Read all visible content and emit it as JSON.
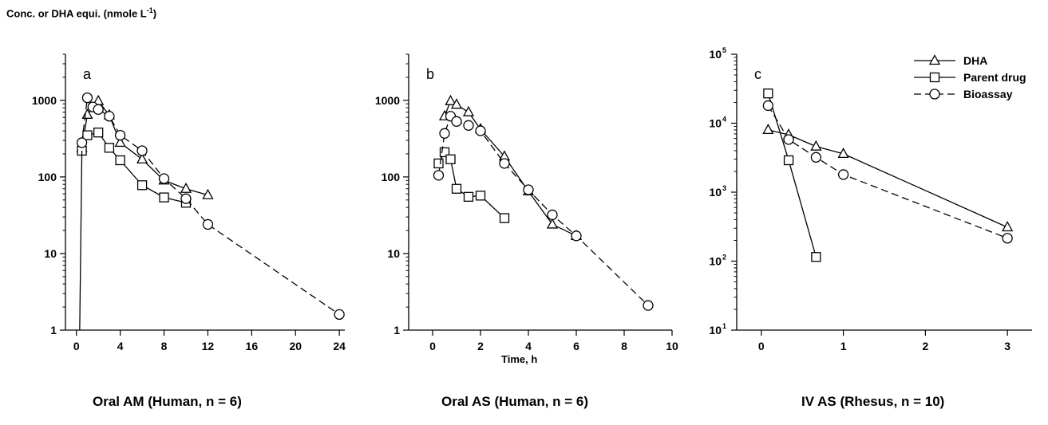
{
  "figure": {
    "ylabel_main": "Conc. or DHA equi. (nmole L",
    "ylabel_sup": "-1",
    "ylabel_close": ")",
    "xlabel": "Time, h"
  },
  "chart_data": [
    {
      "type": "line",
      "panel_letter": "a",
      "title": "Oral AM (Human, n = 6)",
      "y_scale": "log",
      "xlim": [
        -1,
        24.5
      ],
      "ylim": [
        1,
        4000
      ],
      "x_ticks": [
        0,
        4,
        8,
        12,
        16,
        20,
        24
      ],
      "x_tick_labels": [
        "0",
        "4",
        "8",
        "12",
        "16",
        "20",
        "24"
      ],
      "y_ticks": [
        1,
        10,
        100,
        1000
      ],
      "y_tick_labels": [
        "1",
        "10",
        "100",
        "1000"
      ],
      "series": [
        {
          "name": "DHA",
          "marker": "triangle",
          "dash": "solid",
          "x": [
            0.5,
            1,
            2,
            3,
            4,
            6,
            8,
            10,
            12
          ],
          "y": [
            240,
            650,
            980,
            640,
            280,
            170,
            90,
            70,
            58
          ]
        },
        {
          "name": "Parent drug",
          "marker": "square",
          "dash": "solid",
          "x": [
            0.5,
            1,
            2,
            3,
            4,
            6,
            8,
            10
          ],
          "y": [
            220,
            350,
            380,
            240,
            165,
            78,
            54,
            46
          ]
        },
        {
          "name": "Bioassay",
          "marker": "circle",
          "dash": "dashed",
          "x": [
            0.5,
            1,
            1.5,
            2,
            3,
            4,
            6,
            8,
            10,
            12,
            24
          ],
          "y": [
            280,
            1080,
            820,
            760,
            620,
            350,
            220,
            95,
            52,
            24,
            1.6
          ]
        }
      ]
    },
    {
      "type": "line",
      "panel_letter": "b",
      "title": "Oral AS (Human, n = 6)",
      "y_scale": "log",
      "xlim": [
        -1,
        10
      ],
      "ylim": [
        1,
        4000
      ],
      "x_ticks": [
        0,
        2,
        4,
        6,
        8,
        10
      ],
      "x_tick_labels": [
        "0",
        "2",
        "4",
        "6",
        "8",
        "10"
      ],
      "y_ticks": [
        1,
        10,
        100,
        1000
      ],
      "y_tick_labels": [
        "1",
        "10",
        "100",
        "1000"
      ],
      "series": [
        {
          "name": "DHA",
          "marker": "triangle",
          "dash": "solid",
          "x": [
            0.5,
            0.75,
            1,
            1.5,
            2,
            3,
            4,
            5,
            6
          ],
          "y": [
            620,
            980,
            880,
            700,
            420,
            185,
            65,
            24,
            17
          ]
        },
        {
          "name": "Parent drug",
          "marker": "square",
          "dash": "solid",
          "x": [
            0.25,
            0.5,
            0.75,
            1,
            1.5,
            2,
            3
          ],
          "y": [
            150,
            210,
            170,
            70,
            55,
            57,
            29
          ]
        },
        {
          "name": "Bioassay",
          "marker": "circle",
          "dash": "dashed",
          "x": [
            0.25,
            0.5,
            0.75,
            1,
            1.5,
            2,
            3,
            4,
            5,
            6,
            9
          ],
          "y": [
            105,
            370,
            620,
            530,
            470,
            400,
            150,
            68,
            32,
            17,
            2.1
          ]
        }
      ]
    },
    {
      "type": "line",
      "panel_letter": "c",
      "title": "IV AS (Rhesus, n = 10)",
      "y_scale": "log",
      "xlim": [
        -0.3,
        3.3
      ],
      "ylim": [
        10,
        100000
      ],
      "x_ticks": [
        0,
        1,
        2,
        3
      ],
      "x_tick_labels": [
        "0",
        "1",
        "2",
        "3"
      ],
      "y_ticks": [
        10,
        100,
        1000,
        10000,
        100000
      ],
      "y_tick_labels": [
        "10",
        "10",
        "10",
        "10",
        "10"
      ],
      "y_tick_exponents": [
        "1",
        "2",
        "3",
        "4",
        "5"
      ],
      "legend": {
        "placement": "top-right",
        "entries": [
          "DHA",
          "Parent drug",
          "Bioassay"
        ]
      },
      "series": [
        {
          "name": "DHA",
          "marker": "triangle",
          "dash": "solid",
          "x": [
            0.083,
            0.333,
            0.667,
            1,
            3
          ],
          "y": [
            8000,
            6800,
            4600,
            3600,
            310
          ]
        },
        {
          "name": "Parent drug",
          "marker": "square",
          "dash": "solid",
          "x": [
            0.083,
            0.333,
            0.667
          ],
          "y": [
            27000,
            2900,
            115
          ]
        },
        {
          "name": "Bioassay",
          "marker": "circle",
          "dash": "dashed",
          "x": [
            0.083,
            0.333,
            0.667,
            1,
            3
          ],
          "y": [
            18000,
            5800,
            3200,
            1800,
            215
          ]
        }
      ]
    }
  ]
}
